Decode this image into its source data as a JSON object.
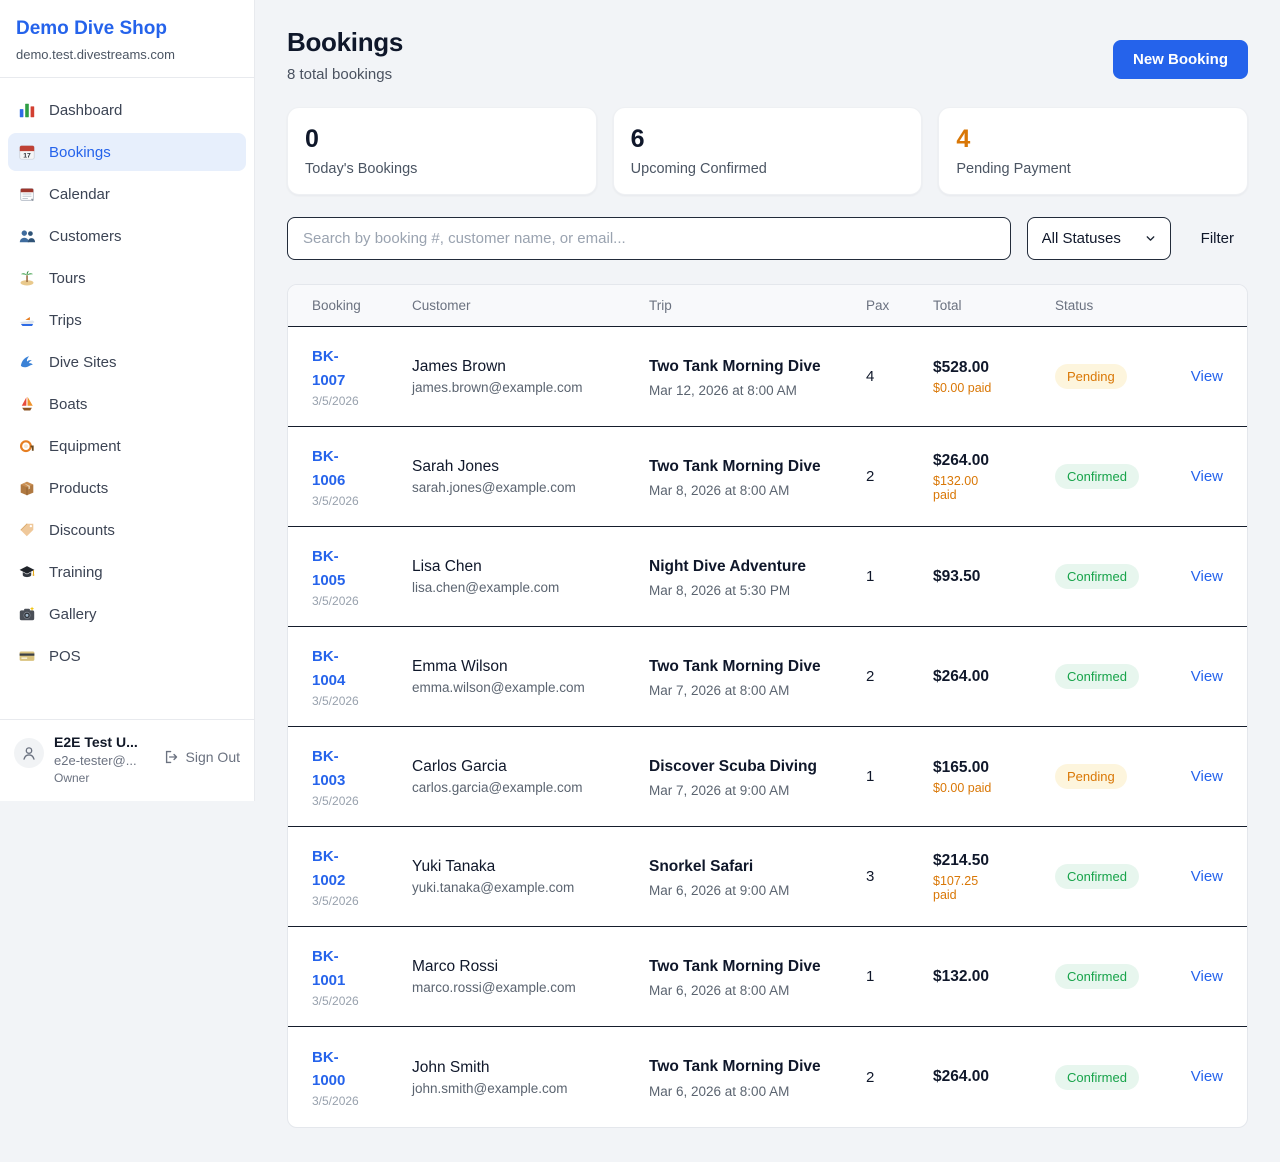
{
  "sidebar": {
    "brand": "Demo Dive Shop",
    "domain": "demo.test.divestreams.com",
    "items": [
      {
        "label": "Dashboard",
        "icon": "bar-chart-icon",
        "active": false
      },
      {
        "label": "Bookings",
        "icon": "bookings-calendar-icon",
        "active": true
      },
      {
        "label": "Calendar",
        "icon": "calendar-icon",
        "active": false
      },
      {
        "label": "Customers",
        "icon": "people-icon",
        "active": false
      },
      {
        "label": "Tours",
        "icon": "island-icon",
        "active": false
      },
      {
        "label": "Trips",
        "icon": "speedboat-icon",
        "active": false
      },
      {
        "label": "Dive Sites",
        "icon": "wave-icon",
        "active": false
      },
      {
        "label": "Boats",
        "icon": "sailboat-icon",
        "active": false
      },
      {
        "label": "Equipment",
        "icon": "dive-mask-icon",
        "active": false
      },
      {
        "label": "Products",
        "icon": "package-icon",
        "active": false
      },
      {
        "label": "Discounts",
        "icon": "tag-icon",
        "active": false
      },
      {
        "label": "Training",
        "icon": "grad-cap-icon",
        "active": false
      },
      {
        "label": "Gallery",
        "icon": "camera-icon",
        "active": false
      },
      {
        "label": "POS",
        "icon": "credit-card-icon",
        "active": false
      }
    ],
    "user": {
      "name": "E2E Test U...",
      "email": "e2e-tester@...",
      "role": "Owner",
      "sign_out_label": "Sign Out"
    }
  },
  "header": {
    "title": "Bookings",
    "subtitle": "8 total bookings",
    "new_booking_label": "New Booking"
  },
  "stats": [
    {
      "value": "0",
      "label": "Today's Bookings",
      "value_color": "#0f172a"
    },
    {
      "value": "6",
      "label": "Upcoming Confirmed",
      "value_color": "#0f172a"
    },
    {
      "value": "4",
      "label": "Pending Payment",
      "value_color": "#d97706"
    }
  ],
  "filters": {
    "search_placeholder": "Search by booking #, customer name, or email...",
    "status_select_value": "All Statuses",
    "filter_label": "Filter"
  },
  "table": {
    "columns": [
      "Booking",
      "Customer",
      "Trip",
      "Pax",
      "Total",
      "Status"
    ],
    "view_label": "View",
    "rows": [
      {
        "id": "BK-1007",
        "date": "3/5/2026",
        "customer_name": "James Brown",
        "customer_email": "james.brown@example.com",
        "trip_name": "Two Tank Morning Dive",
        "trip_datetime": "Mar 12, 2026 at 8:00 AM",
        "pax": "4",
        "total": "$528.00",
        "paid": "$0.00 paid",
        "status": "Pending"
      },
      {
        "id": "BK-1006",
        "date": "3/5/2026",
        "customer_name": "Sarah Jones",
        "customer_email": "sarah.jones@example.com",
        "trip_name": "Two Tank Morning Dive",
        "trip_datetime": "Mar 8, 2026 at 8:00 AM",
        "pax": "2",
        "total": "$264.00",
        "paid": "$132.00 paid",
        "status": "Confirmed"
      },
      {
        "id": "BK-1005",
        "date": "3/5/2026",
        "customer_name": "Lisa Chen",
        "customer_email": "lisa.chen@example.com",
        "trip_name": "Night Dive Adventure",
        "trip_datetime": "Mar 8, 2026 at 5:30 PM",
        "pax": "1",
        "total": "$93.50",
        "paid": "",
        "status": "Confirmed"
      },
      {
        "id": "BK-1004",
        "date": "3/5/2026",
        "customer_name": "Emma Wilson",
        "customer_email": "emma.wilson@example.com",
        "trip_name": "Two Tank Morning Dive",
        "trip_datetime": "Mar 7, 2026 at 8:00 AM",
        "pax": "2",
        "total": "$264.00",
        "paid": "",
        "status": "Confirmed"
      },
      {
        "id": "BK-1003",
        "date": "3/5/2026",
        "customer_name": "Carlos Garcia",
        "customer_email": "carlos.garcia@example.com",
        "trip_name": "Discover Scuba Diving",
        "trip_datetime": "Mar 7, 2026 at 9:00 AM",
        "pax": "1",
        "total": "$165.00",
        "paid": "$0.00 paid",
        "status": "Pending"
      },
      {
        "id": "BK-1002",
        "date": "3/5/2026",
        "customer_name": "Yuki Tanaka",
        "customer_email": "yuki.tanaka@example.com",
        "trip_name": "Snorkel Safari",
        "trip_datetime": "Mar 6, 2026 at 9:00 AM",
        "pax": "3",
        "total": "$214.50",
        "paid": "$107.25 paid",
        "status": "Confirmed"
      },
      {
        "id": "BK-1001",
        "date": "3/5/2026",
        "customer_name": "Marco Rossi",
        "customer_email": "marco.rossi@example.com",
        "trip_name": "Two Tank Morning Dive",
        "trip_datetime": "Mar 6, 2026 at 8:00 AM",
        "pax": "1",
        "total": "$132.00",
        "paid": "",
        "status": "Confirmed"
      },
      {
        "id": "BK-1000",
        "date": "3/5/2026",
        "customer_name": "John Smith",
        "customer_email": "john.smith@example.com",
        "trip_name": "Two Tank Morning Dive",
        "trip_datetime": "Mar 6, 2026 at 8:00 AM",
        "pax": "2",
        "total": "$264.00",
        "paid": "",
        "status": "Confirmed"
      }
    ]
  },
  "colors": {
    "accent_blue": "#2563eb",
    "pending_orange": "#d97706",
    "confirmed_green": "#16a34a"
  }
}
